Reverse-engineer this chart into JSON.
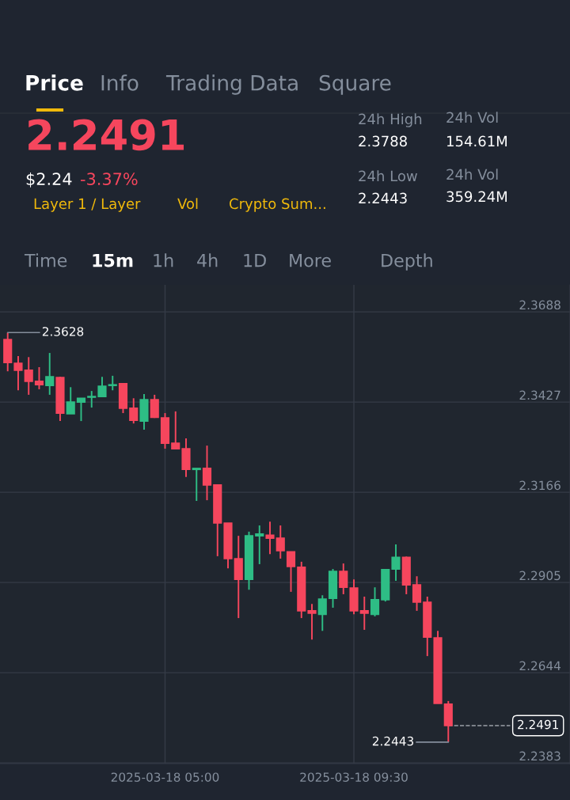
{
  "chart_data": {
    "type": "candlestick",
    "x": [
      "2025-03-18T01:15",
      "2025-03-18T01:30",
      "2025-03-18T01:45",
      "2025-03-18T02:00",
      "2025-03-18T02:15",
      "2025-03-18T02:30",
      "2025-03-18T02:45",
      "2025-03-18T03:00",
      "2025-03-18T03:15",
      "2025-03-18T03:30",
      "2025-03-18T03:45",
      "2025-03-18T04:00",
      "2025-03-18T04:15",
      "2025-03-18T04:30",
      "2025-03-18T04:45",
      "2025-03-18T05:00",
      "2025-03-18T05:15",
      "2025-03-18T05:30",
      "2025-03-18T05:45",
      "2025-03-18T06:00",
      "2025-03-18T06:15",
      "2025-03-18T06:30",
      "2025-03-18T06:45",
      "2025-03-18T07:00",
      "2025-03-18T07:15",
      "2025-03-18T07:30",
      "2025-03-18T07:45",
      "2025-03-18T08:00",
      "2025-03-18T08:15",
      "2025-03-18T08:30",
      "2025-03-18T08:45",
      "2025-03-18T09:00",
      "2025-03-18T09:15",
      "2025-03-18T09:30",
      "2025-03-18T09:45",
      "2025-03-18T10:00",
      "2025-03-18T10:15",
      "2025-03-18T10:30",
      "2025-03-18T10:45",
      "2025-03-18T11:00",
      "2025-03-18T11:15",
      "2025-03-18T11:30",
      "2025-03-18T11:45"
    ],
    "ohlc": [
      [
        2.3608,
        2.3628,
        2.3516,
        2.3541
      ],
      [
        2.3539,
        2.356,
        2.3461,
        2.3519
      ],
      [
        2.3519,
        2.3557,
        2.3448,
        2.3487
      ],
      [
        2.3487,
        2.3528,
        2.3464,
        2.3477
      ],
      [
        2.3475,
        2.3569,
        2.3448,
        2.35
      ],
      [
        2.3498,
        2.35,
        2.3372,
        2.3395
      ],
      [
        2.3393,
        2.347,
        2.3393,
        2.3427
      ],
      [
        2.3427,
        2.3438,
        2.3372,
        2.3438
      ],
      [
        2.3441,
        2.3459,
        2.3411,
        2.3443
      ],
      [
        2.3443,
        2.35,
        2.3443,
        2.3473
      ],
      [
        2.3475,
        2.3503,
        2.3461,
        2.3477
      ],
      [
        2.348,
        2.3482,
        2.3395,
        2.3409
      ],
      [
        2.3409,
        2.3438,
        2.3365,
        2.3374
      ],
      [
        2.3372,
        2.345,
        2.3347,
        2.3434
      ],
      [
        2.3434,
        2.3448,
        2.3381,
        2.3383
      ],
      [
        2.3381,
        2.3395,
        2.3292,
        2.3308
      ],
      [
        2.3308,
        2.34,
        2.3292,
        2.3292
      ],
      [
        2.3292,
        2.3322,
        2.321,
        2.3232
      ],
      [
        2.3232,
        2.3235,
        2.3141,
        2.3235
      ],
      [
        2.3235,
        2.3301,
        2.3143,
        2.3187
      ],
      [
        2.3187,
        2.3187,
        2.2981,
        2.3077
      ],
      [
        2.3077,
        2.3077,
        2.2946,
        2.2974
      ],
      [
        2.2974,
        2.304,
        2.2802,
        2.2914
      ],
      [
        2.2914,
        2.3052,
        2.2884,
        2.304
      ],
      [
        2.304,
        2.307,
        2.2958,
        2.3045
      ],
      [
        2.3042,
        2.3081,
        2.2987,
        2.3033
      ],
      [
        2.3033,
        2.307,
        2.2974,
        2.2997
      ],
      [
        2.2994,
        2.2994,
        2.2878,
        2.2951
      ],
      [
        2.2949,
        2.2965,
        2.2802,
        2.2823
      ],
      [
        2.2823,
        2.2843,
        2.274,
        2.2816
      ],
      [
        2.2813,
        2.2868,
        2.2765,
        2.2857
      ],
      [
        2.2859,
        2.2944,
        2.2832,
        2.2937
      ],
      [
        2.2937,
        2.296,
        2.2871,
        2.2891
      ],
      [
        2.2889,
        2.2914,
        2.2813,
        2.2823
      ],
      [
        2.2823,
        2.2864,
        2.2768,
        2.2816
      ],
      [
        2.2813,
        2.2891,
        2.2807,
        2.2855
      ],
      [
        2.2855,
        2.2944,
        2.285,
        2.2942
      ],
      [
        2.2944,
        2.3015,
        2.291,
        2.2978
      ],
      [
        2.2978,
        2.298,
        2.2871,
        2.2898
      ],
      [
        2.2898,
        2.2923,
        2.2823,
        2.2848
      ],
      [
        2.2848,
        2.2864,
        2.2692,
        2.2747
      ],
      [
        2.2745,
        2.2765,
        2.2555,
        2.2555
      ],
      [
        2.2553,
        2.2562,
        2.2443,
        2.2491
      ]
    ],
    "colors": [
      "#f6465d",
      "#f6465d",
      "#f6465d",
      "#f6465d",
      "#2ebd85",
      "#f6465d",
      "#2ebd85",
      "#2ebd85",
      "#2ebd85",
      "#2ebd85",
      "#2ebd85",
      "#f6465d",
      "#f6465d",
      "#2ebd85",
      "#f6465d",
      "#f6465d",
      "#f6465d",
      "#f6465d",
      "#2ebd85",
      "#f6465d",
      "#f6465d",
      "#f6465d",
      "#f6465d",
      "#2ebd85",
      "#2ebd85",
      "#f6465d",
      "#f6465d",
      "#f6465d",
      "#f6465d",
      "#f6465d",
      "#2ebd85",
      "#2ebd85",
      "#f6465d",
      "#f6465d",
      "#f6465d",
      "#2ebd85",
      "#2ebd85",
      "#2ebd85",
      "#f6465d",
      "#f6465d",
      "#f6465d",
      "#f6465d",
      "#f6465d"
    ],
    "xlim": [
      "2025-03-18T01:04",
      "2025-03-18T14:39"
    ],
    "ylim": [
      2.2381,
      2.3766
    ],
    "xticks": [
      {
        "value": "2025-03-18T05:00",
        "label": "2025-03-18 05:00"
      },
      {
        "value": "2025-03-18T09:30",
        "label": "2025-03-18 09:30"
      }
    ],
    "yticks": [
      2.2383,
      2.2644,
      2.2905,
      2.3166,
      2.3427,
      2.3688
    ],
    "grid": true,
    "ref_lines": [
      {
        "axis": "y",
        "value": 2.2491,
        "label": "2.2491",
        "color": "#9aa0a8",
        "line_style": "dashed"
      }
    ],
    "annotations": [
      "Price",
      "Info",
      "Trading Data",
      "Square",
      "2.2491",
      "$2.24",
      "-3.37%",
      "Layer 1 / Layer",
      "Vol",
      "Crypto Sum...",
      "24h High",
      "2.3788",
      "24h Low",
      "2.2443",
      "24h Vol",
      "154.61M",
      "24h Vol",
      "359.24M",
      "Time",
      "15m",
      "1h",
      "4h",
      "1D",
      "More",
      "Depth",
      {
        "text": "2.3628",
        "x": "2025-03-18T01:15",
        "y": 2.3628
      },
      {
        "text": "2.2443",
        "x": "2025-03-18T11:45",
        "y": 2.2443
      }
    ]
  }
}
